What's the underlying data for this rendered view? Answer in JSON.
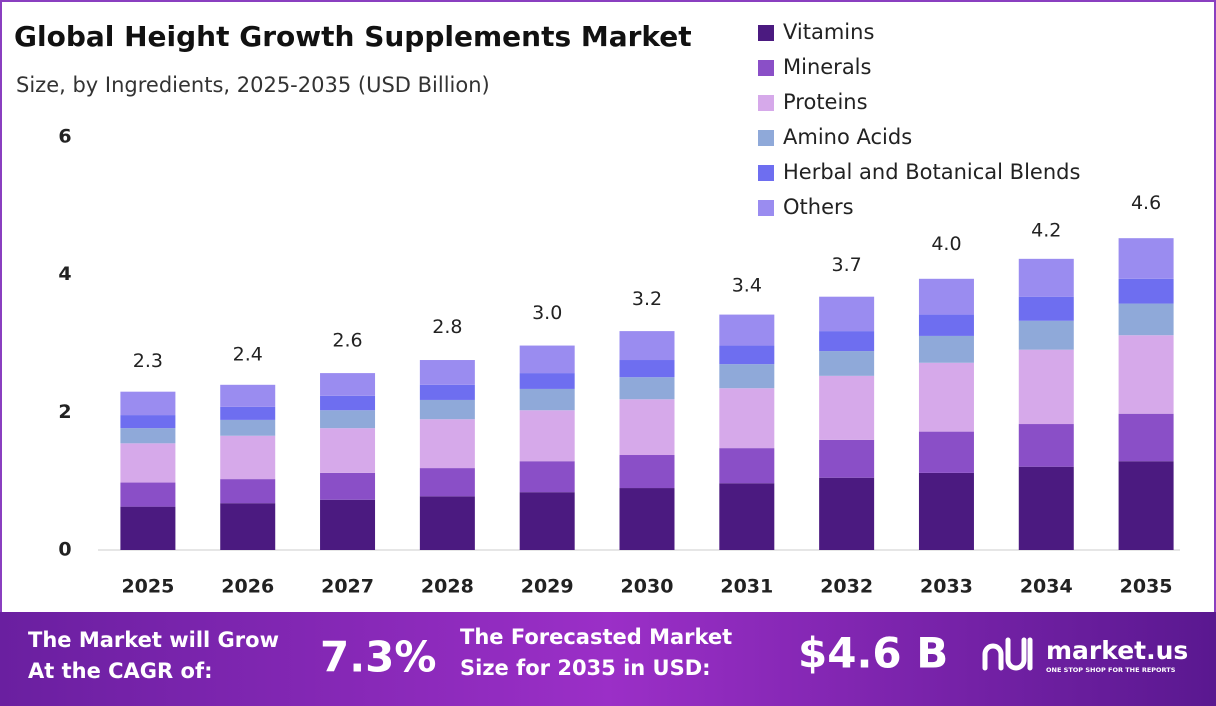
{
  "chart_data": {
    "type": "stacked_bar",
    "title": "Global Height Growth Supplements Market",
    "subtitle": "Size, by Ingredients, 2025-2035 (USD Billion)",
    "categories": [
      "2025",
      "2026",
      "2027",
      "2028",
      "2029",
      "2030",
      "2031",
      "2032",
      "2033",
      "2034",
      "2035"
    ],
    "series": [
      {
        "name": "Vitamins",
        "color": "#4b1a80",
        "values": [
          0.63,
          0.68,
          0.73,
          0.78,
          0.84,
          0.9,
          0.97,
          1.05,
          1.12,
          1.21,
          1.29
        ]
      },
      {
        "name": "Minerals",
        "color": "#8a4fc7",
        "values": [
          0.35,
          0.35,
          0.39,
          0.41,
          0.45,
          0.48,
          0.51,
          0.55,
          0.6,
          0.62,
          0.69
        ]
      },
      {
        "name": "Proteins",
        "color": "#d6a9ea",
        "values": [
          0.57,
          0.63,
          0.65,
          0.71,
          0.74,
          0.81,
          0.87,
          0.93,
          1.0,
          1.08,
          1.14
        ]
      },
      {
        "name": "Amino Acids",
        "color": "#8fa9d9",
        "values": [
          0.22,
          0.23,
          0.26,
          0.28,
          0.31,
          0.32,
          0.35,
          0.36,
          0.39,
          0.42,
          0.46
        ]
      },
      {
        "name": "Herbal and Botanical Blends",
        "color": "#6e6ef0",
        "values": [
          0.19,
          0.19,
          0.21,
          0.22,
          0.23,
          0.25,
          0.27,
          0.29,
          0.31,
          0.35,
          0.36
        ]
      },
      {
        "name": "Others",
        "color": "#9a8cf0",
        "values": [
          0.34,
          0.32,
          0.33,
          0.36,
          0.4,
          0.42,
          0.45,
          0.5,
          0.52,
          0.55,
          0.59
        ]
      }
    ],
    "totals": [
      2.3,
      2.4,
      2.6,
      2.8,
      3.0,
      3.2,
      3.4,
      3.7,
      4.0,
      4.2,
      4.6
    ],
    "totals_labels": [
      "2.3",
      "2.4",
      "2.6",
      "2.8",
      "3.0",
      "3.2",
      "3.4",
      "3.7",
      "4.0",
      "4.2",
      "4.6"
    ],
    "ylim": [
      0,
      6
    ],
    "yticks": [
      0,
      2,
      4,
      6
    ],
    "grid": false,
    "legend": "top-right"
  },
  "banner": {
    "cagr_label": [
      "The Market will Grow",
      "At the CAGR of:"
    ],
    "cagr_value": "7.3%",
    "forecast_label": [
      "The Forecasted Market",
      "Size for 2035 in USD:"
    ],
    "forecast_value": "$4.6 B",
    "brand": "market.us",
    "tagline": "ONE STOP SHOP FOR THE REPORTS"
  }
}
